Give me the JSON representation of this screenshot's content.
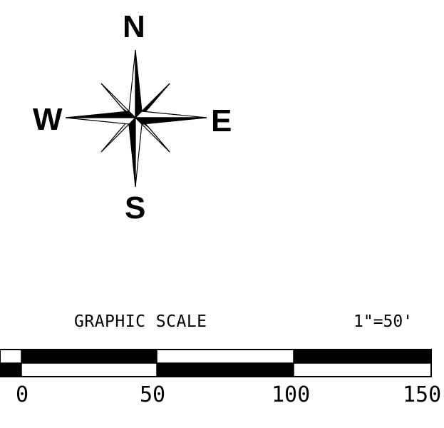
{
  "compass": {
    "north": "N",
    "south": "S",
    "west": "W",
    "east": "E"
  },
  "scale": {
    "title": "GRAPHIC SCALE",
    "ratio": "1\"=50'",
    "ticks": [
      "0",
      "50",
      "100",
      "150"
    ],
    "colors": {
      "fill": "#000000",
      "background": "#ffffff"
    }
  }
}
